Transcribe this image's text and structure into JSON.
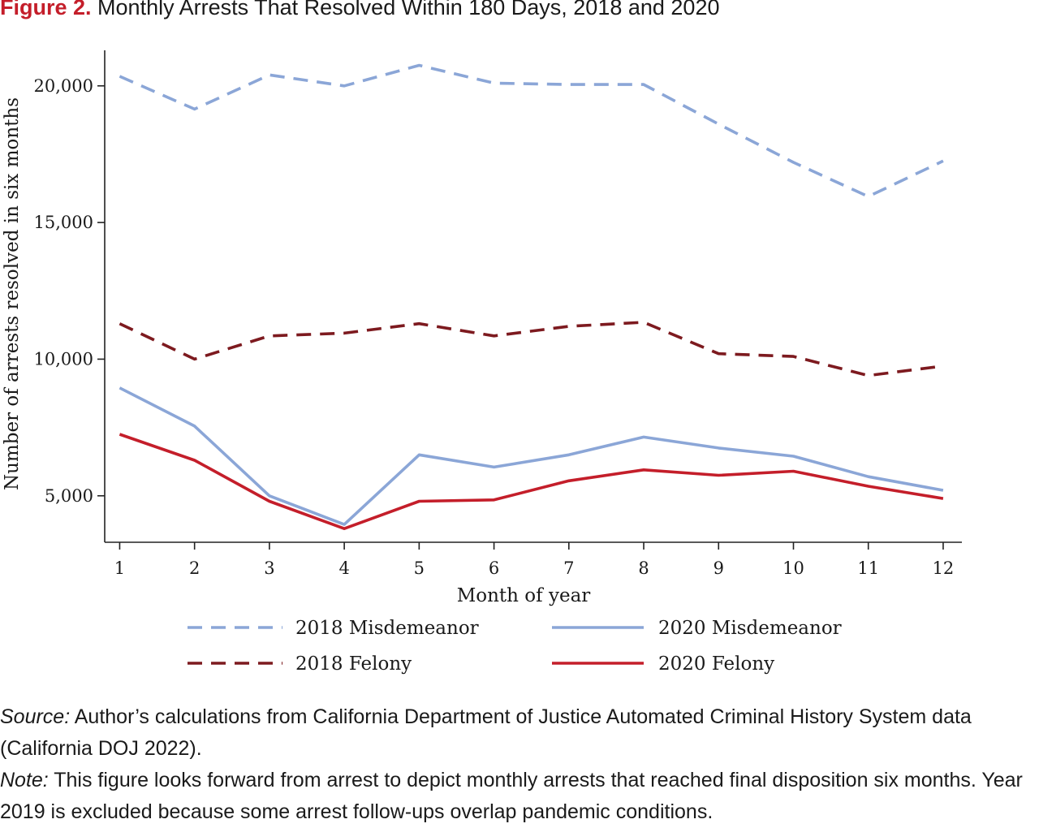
{
  "figure": {
    "label": "Figure 2.",
    "title": "Monthly Arrests That Resolved Within 180 Days, 2018 and 2020"
  },
  "chart_data": {
    "type": "line",
    "xlabel": "Month of year",
    "ylabel": "Number of arrests resolved in six months",
    "x": [
      1,
      2,
      3,
      4,
      5,
      6,
      7,
      8,
      9,
      10,
      11,
      12
    ],
    "xlim": [
      0.8,
      12.25
    ],
    "ylim": [
      3300,
      21300
    ],
    "yticks": [
      5000,
      10000,
      15000,
      20000
    ],
    "ytick_labels": [
      "5,000",
      "10,000",
      "15,000",
      "20,000"
    ],
    "legend_position": "bottom",
    "series": [
      {
        "name": "2018 Misdemeanor",
        "color": "#8ba6d7",
        "style": "dashed",
        "values": [
          20350,
          19150,
          20400,
          20000,
          20750,
          20100,
          20050,
          20050,
          18600,
          17200,
          15950,
          17250
        ]
      },
      {
        "name": "2020 Misdemeanor",
        "color": "#8ba6d7",
        "style": "solid",
        "values": [
          8950,
          7550,
          5000,
          3950,
          6500,
          6050,
          6500,
          7150,
          6750,
          6450,
          5700,
          5200
        ]
      },
      {
        "name": "2018 Felony",
        "color": "#7d1a1f",
        "style": "dashed",
        "values": [
          11300,
          10000,
          10850,
          10950,
          11300,
          10850,
          11200,
          11350,
          10200,
          10100,
          9400,
          9750
        ]
      },
      {
        "name": "2020 Felony",
        "color": "#c41e2a",
        "style": "solid",
        "values": [
          7250,
          6300,
          4800,
          3800,
          4800,
          4850,
          5550,
          5950,
          5750,
          5900,
          5350,
          4900
        ]
      }
    ]
  },
  "notes": {
    "source_label": "Source:",
    "source_text": " Author’s calculations from California Department of Justice Automated Criminal History System data (California DOJ 2022).",
    "note_label": "Note:",
    "note_text": " This figure looks forward from arrest to depict monthly arrests that reached final disposition six months. Year 2019 is excluded because some arrest follow-ups overlap pandemic conditions."
  }
}
